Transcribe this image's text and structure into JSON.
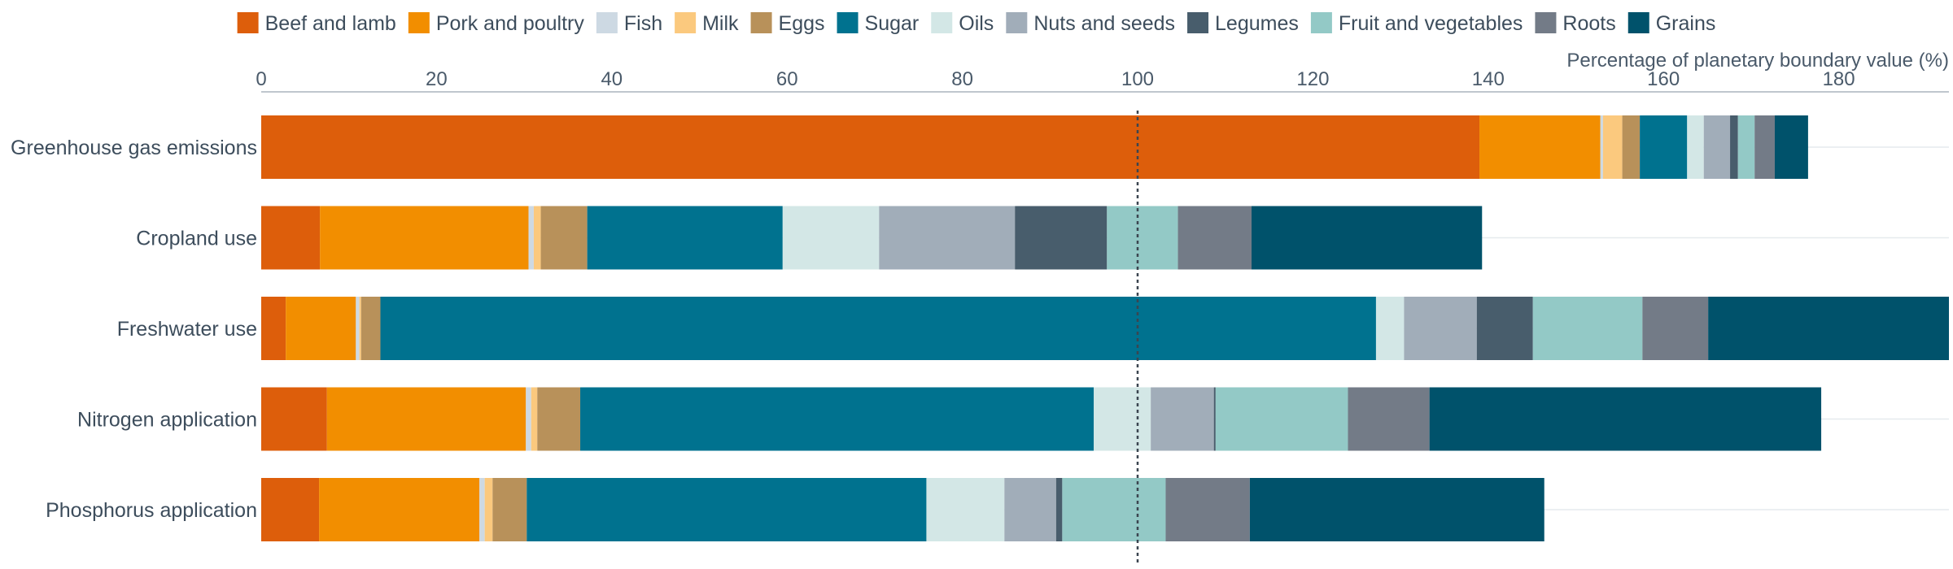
{
  "chart_data": {
    "type": "bar",
    "orientation": "horizontal",
    "stacked": true,
    "xlabel": "Percentage of planetary boundary value (%)",
    "xlim": [
      0,
      193
    ],
    "x_ticks": [
      0,
      20,
      40,
      60,
      80,
      100,
      120,
      140,
      160,
      180
    ],
    "reference_line": 100,
    "legend_position": "top",
    "grid": "horizontal light lines per category",
    "categories": [
      "Greenhouse gas emissions",
      "Cropland use",
      "Freshwater use",
      "Nitrogen application",
      "Phosphorus application"
    ],
    "series": [
      {
        "name": "Beef and lamb",
        "color": "#dd5e0b",
        "values": [
          139.0,
          6.7,
          2.8,
          7.5,
          6.6
        ]
      },
      {
        "name": "Pork and poultry",
        "color": "#f28e00",
        "values": [
          13.8,
          23.8,
          8.0,
          22.7,
          18.3
        ]
      },
      {
        "name": "Fish",
        "color": "#cdd9e3",
        "values": [
          0.3,
          0.6,
          0.4,
          0.6,
          0.6
        ]
      },
      {
        "name": "Milk",
        "color": "#fbc97e",
        "values": [
          2.2,
          0.8,
          0.2,
          0.7,
          0.9
        ]
      },
      {
        "name": "Eggs",
        "color": "#b8915a",
        "values": [
          2.0,
          5.3,
          2.2,
          4.9,
          3.9
        ]
      },
      {
        "name": "Sugar",
        "color": "#00728f",
        "values": [
          5.4,
          22.3,
          113.6,
          58.6,
          45.6
        ]
      },
      {
        "name": "Oils",
        "color": "#d3e7e6",
        "values": [
          1.9,
          11.0,
          3.2,
          6.5,
          8.9
        ]
      },
      {
        "name": "Nuts and seeds",
        "color": "#a1adb9",
        "values": [
          3.0,
          15.5,
          8.3,
          7.2,
          5.9
        ]
      },
      {
        "name": "Legumes",
        "color": "#485d6c",
        "values": [
          0.9,
          10.5,
          6.4,
          0.2,
          0.7
        ]
      },
      {
        "name": "Fruit and vegetables",
        "color": "#93c9c6",
        "values": [
          1.9,
          8.1,
          12.5,
          15.1,
          11.8
        ]
      },
      {
        "name": "Roots",
        "color": "#737b87",
        "values": [
          2.3,
          8.4,
          7.5,
          9.3,
          9.6
        ]
      },
      {
        "name": "Grains",
        "color": "#00526b",
        "values": [
          3.8,
          26.3,
          28.0,
          44.7,
          33.6
        ]
      }
    ]
  }
}
